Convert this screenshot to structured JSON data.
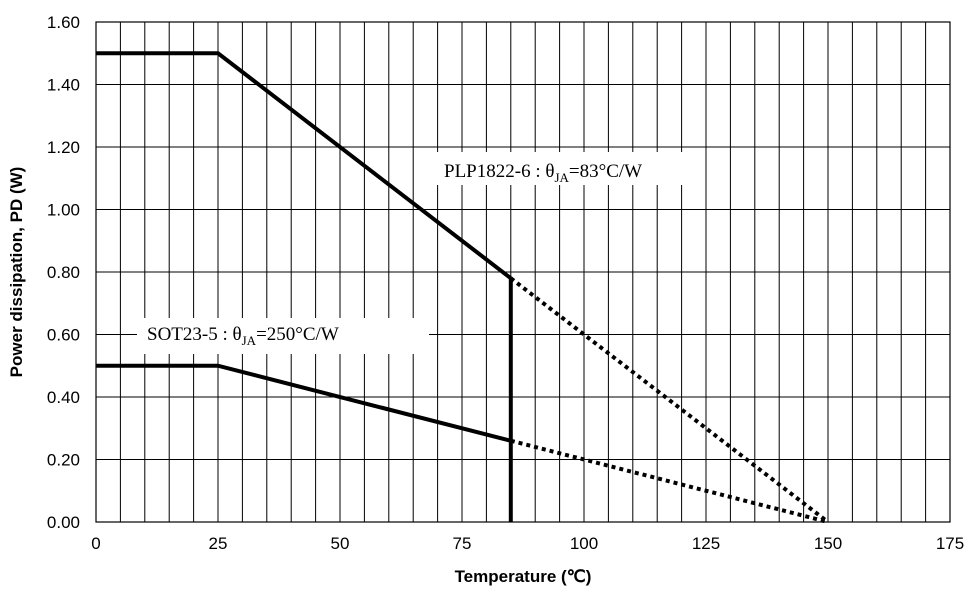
{
  "chart_data": {
    "type": "line",
    "xlabel": "Temperature (℃)",
    "ylabel": "Power dissipation,  PD (W)",
    "xlim": [
      0,
      175
    ],
    "ylim": [
      0,
      1.6
    ],
    "x_ticks": [
      0,
      25,
      50,
      75,
      100,
      125,
      150,
      175
    ],
    "y_ticks": [
      0,
      0.2,
      0.4,
      0.6,
      0.8,
      1.0,
      1.2,
      1.4,
      1.6
    ],
    "x_tick_labels": [
      "0",
      "25",
      "50",
      "75",
      "100",
      "125",
      "150",
      "175"
    ],
    "y_tick_labels": [
      "0.00",
      "0.20",
      "0.40",
      "0.60",
      "0.80",
      "1.00",
      "1.20",
      "1.40",
      "1.60"
    ],
    "grid_x_step": 5,
    "grid_y_step": 0.2,
    "series": [
      {
        "name_prefix": "PLP1822-6 : θ",
        "name_subscript": "JA",
        "name_suffix": "=83°C/W",
        "color": "#000000",
        "solid": {
          "x": [
            0,
            25,
            85
          ],
          "y": [
            1.5,
            1.5,
            0.78
          ]
        },
        "dashed": {
          "x": [
            85,
            150
          ],
          "y": [
            0.78,
            0.0
          ]
        }
      },
      {
        "name_prefix": "SOT23-5 : θ",
        "name_subscript": "JA",
        "name_suffix": "=250°C/W",
        "color": "#000000",
        "solid": {
          "x": [
            0,
            25,
            85
          ],
          "y": [
            0.5,
            0.5,
            0.26
          ]
        },
        "dashed": {
          "x": [
            85,
            150
          ],
          "y": [
            0.26,
            0.0
          ]
        }
      }
    ],
    "vertical_line": {
      "x": 85,
      "y_from": 0,
      "y_to": 0.78
    }
  }
}
